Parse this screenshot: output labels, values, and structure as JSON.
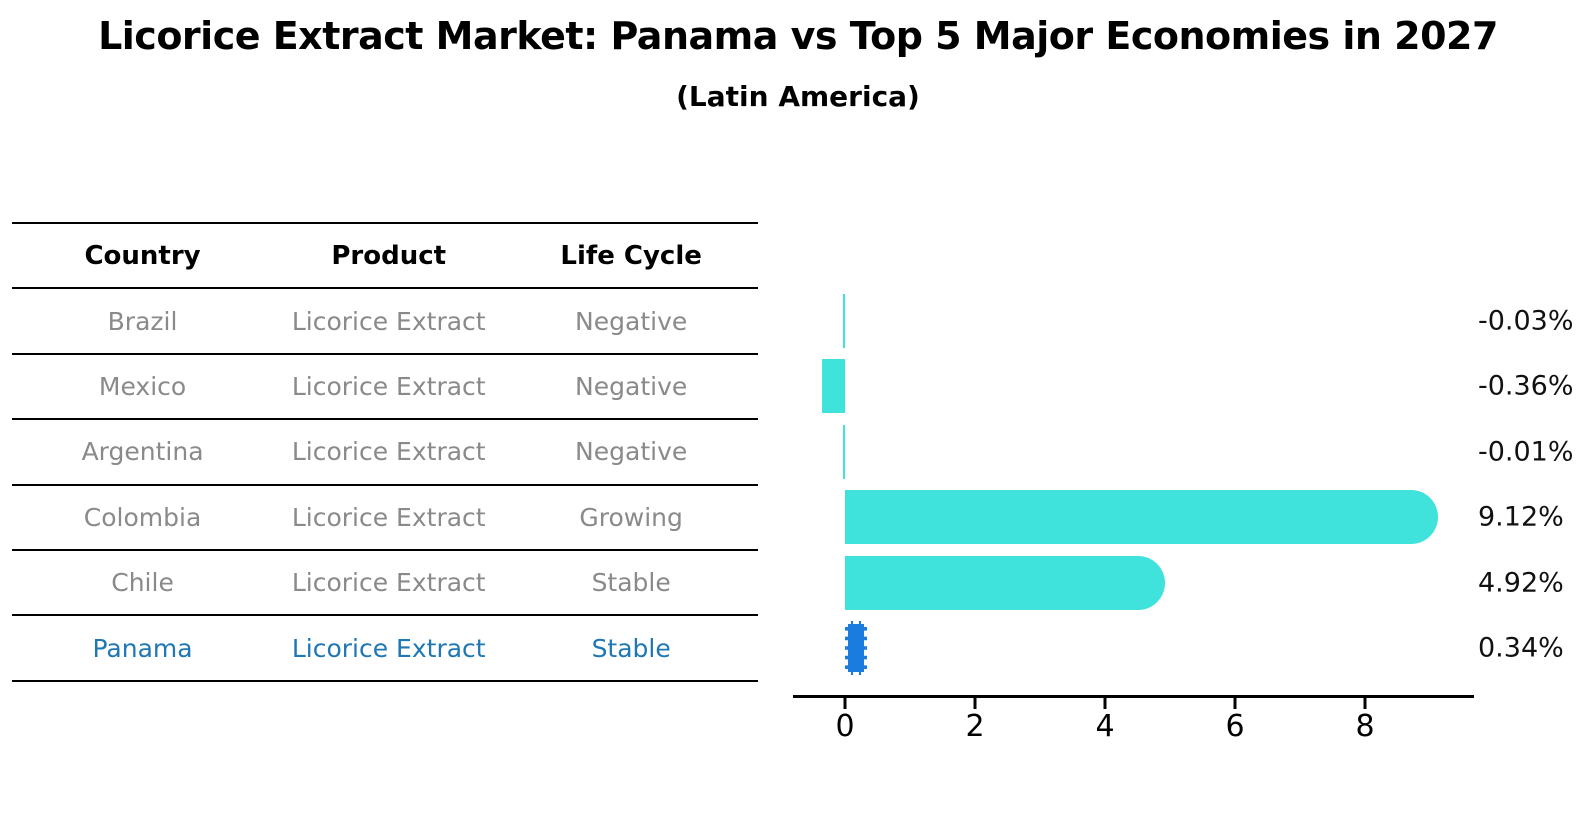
{
  "title": "Licorice Extract Market: Panama vs Top 5 Major Economies in 2027",
  "subtitle": "(Latin America)",
  "table": {
    "headers": {
      "country": "Country",
      "product": "Product",
      "life_cycle": "Life Cycle"
    },
    "rows": [
      {
        "country": "Brazil",
        "product": "Licorice Extract",
        "life_cycle": "Negative",
        "highlight": false
      },
      {
        "country": "Mexico",
        "product": "Licorice Extract",
        "life_cycle": "Negative",
        "highlight": false
      },
      {
        "country": "Argentina",
        "product": "Licorice Extract",
        "life_cycle": "Negative",
        "highlight": false
      },
      {
        "country": "Colombia",
        "product": "Licorice Extract",
        "life_cycle": "Growing",
        "highlight": false
      },
      {
        "country": "Chile",
        "product": "Licorice Extract",
        "life_cycle": "Stable",
        "highlight": false
      },
      {
        "country": "Panama",
        "product": "Licorice Extract",
        "life_cycle": "Stable",
        "highlight": true
      }
    ]
  },
  "chart_data": {
    "type": "bar",
    "orientation": "horizontal",
    "title": "Licorice Extract Market: Panama vs Top 5 Major Economies in 2027",
    "subtitle": "(Latin America)",
    "categories": [
      "Brazil",
      "Mexico",
      "Argentina",
      "Colombia",
      "Chile",
      "Panama"
    ],
    "values": [
      -0.03,
      -0.36,
      -0.01,
      9.12,
      4.92,
      0.34
    ],
    "value_labels": [
      "-0.03%",
      "-0.36%",
      "-0.01%",
      "9.12%",
      "4.92%",
      "0.34%"
    ],
    "unit": "percent",
    "xtick_labels": [
      "0",
      "2",
      "4",
      "6",
      "8"
    ],
    "xtick_values": [
      0,
      2,
      4,
      6,
      8
    ],
    "xlim": [
      -0.8,
      9.66
    ],
    "grid": false,
    "legend": null,
    "bar_color": "#3FE3DC",
    "highlight_index": 5,
    "highlight_bar_color": "#1B7CE0",
    "highlight_text_color": "#1F77B4",
    "axis_color": "#000000",
    "value_label_color": "#111111",
    "table_text_color": "#8a8a8a",
    "header_text_color": "#000000"
  }
}
